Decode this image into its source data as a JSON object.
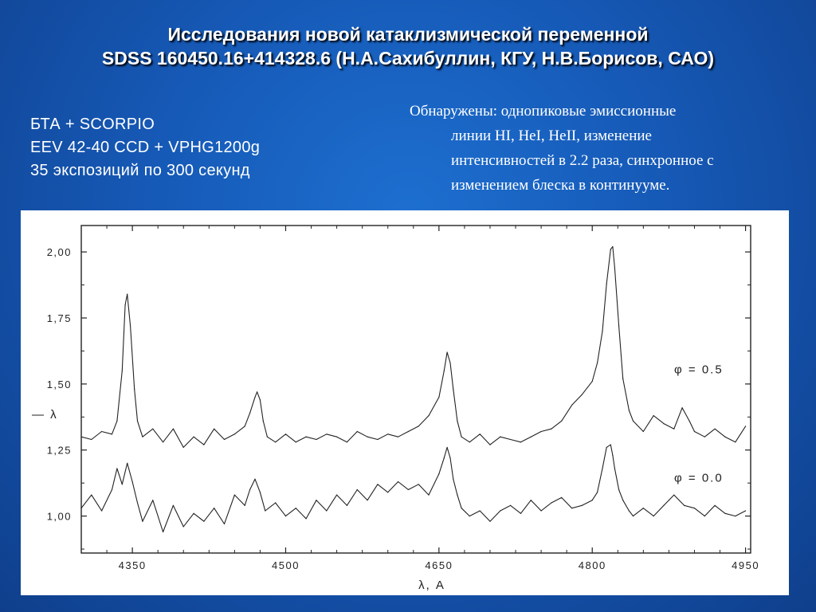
{
  "title": {
    "line1": "Исследования новой катаклизмической переменной",
    "line2": "SDSS 160450.16+414328.6 (Н.А.Сахибуллин, КГУ, Н.В.Борисов, САО)"
  },
  "instrument": {
    "line1": "БТА + SCORPIO",
    "line2": "EEV 42-40 CCD + VPHG1200g",
    "line3": "35 экспозиций по 300 секунд"
  },
  "findings": {
    "line1": "Обнаружены: однопиковые эмиссионные",
    "line2": "линии  HI, HeI, HeII, изменение",
    "line3": "интенсивностей в 2.2 раза, синхронное с",
    "line4": "изменением блеска в континууме."
  },
  "colors": {
    "background": "#1659b6",
    "text": "#ffffff",
    "plot_line": "#222222"
  },
  "chart_data": {
    "type": "line",
    "xlabel": "λ, A",
    "ylabel": "—  λ",
    "xlim": [
      4300,
      4955
    ],
    "ylim": [
      0.86,
      2.1
    ],
    "x_ticks": [
      4350,
      4500,
      4650,
      4800,
      4950
    ],
    "x_tick_labels": [
      "4350",
      "4500",
      "4650",
      "4800",
      "4950"
    ],
    "y_ticks": [
      1.0,
      1.25,
      1.5,
      1.75,
      2.0
    ],
    "y_tick_labels": [
      "1,00",
      "1,25",
      "1,50",
      "1,75",
      "2,00"
    ],
    "grid": false,
    "series": [
      {
        "name": "φ  =  0.5",
        "x": [
          4300,
          4310,
          4320,
          4330,
          4335,
          4340,
          4343,
          4345,
          4348,
          4352,
          4355,
          4360,
          4370,
          4380,
          4390,
          4400,
          4410,
          4420,
          4430,
          4440,
          4450,
          4460,
          4465,
          4470,
          4472,
          4475,
          4478,
          4482,
          4490,
          4500,
          4510,
          4520,
          4530,
          4540,
          4550,
          4560,
          4570,
          4580,
          4590,
          4600,
          4610,
          4620,
          4630,
          4640,
          4650,
          4655,
          4658,
          4661,
          4664,
          4668,
          4672,
          4680,
          4690,
          4700,
          4710,
          4720,
          4730,
          4740,
          4750,
          4760,
          4770,
          4780,
          4790,
          4800,
          4805,
          4810,
          4814,
          4818,
          4820,
          4822,
          4826,
          4830,
          4836,
          4840,
          4850,
          4860,
          4870,
          4880,
          4888,
          4895,
          4900,
          4910,
          4920,
          4930,
          4940,
          4950
        ],
        "values": [
          1.3,
          1.29,
          1.32,
          1.31,
          1.36,
          1.55,
          1.8,
          1.84,
          1.72,
          1.48,
          1.36,
          1.3,
          1.33,
          1.28,
          1.33,
          1.26,
          1.3,
          1.27,
          1.33,
          1.29,
          1.31,
          1.34,
          1.39,
          1.45,
          1.47,
          1.44,
          1.36,
          1.3,
          1.28,
          1.31,
          1.28,
          1.3,
          1.29,
          1.31,
          1.3,
          1.28,
          1.32,
          1.3,
          1.29,
          1.31,
          1.3,
          1.32,
          1.34,
          1.38,
          1.45,
          1.55,
          1.62,
          1.58,
          1.48,
          1.36,
          1.3,
          1.28,
          1.31,
          1.27,
          1.3,
          1.29,
          1.28,
          1.3,
          1.32,
          1.33,
          1.36,
          1.42,
          1.46,
          1.51,
          1.58,
          1.7,
          1.88,
          2.01,
          2.02,
          1.94,
          1.72,
          1.52,
          1.4,
          1.36,
          1.32,
          1.38,
          1.35,
          1.33,
          1.41,
          1.36,
          1.32,
          1.3,
          1.33,
          1.3,
          1.28,
          1.34
        ]
      },
      {
        "name": "φ  =  0.0",
        "x": [
          4300,
          4310,
          4320,
          4330,
          4335,
          4340,
          4345,
          4350,
          4355,
          4360,
          4370,
          4380,
          4390,
          4400,
          4410,
          4420,
          4430,
          4440,
          4450,
          4460,
          4465,
          4470,
          4475,
          4480,
          4490,
          4500,
          4510,
          4520,
          4530,
          4540,
          4550,
          4560,
          4570,
          4580,
          4590,
          4600,
          4610,
          4620,
          4630,
          4640,
          4650,
          4655,
          4658,
          4661,
          4664,
          4668,
          4672,
          4680,
          4690,
          4700,
          4710,
          4720,
          4730,
          4740,
          4750,
          4760,
          4770,
          4780,
          4790,
          4800,
          4805,
          4810,
          4814,
          4818,
          4820,
          4822,
          4826,
          4830,
          4836,
          4840,
          4850,
          4860,
          4870,
          4875,
          4880,
          4890,
          4900,
          4910,
          4920,
          4930,
          4940,
          4950
        ],
        "values": [
          1.03,
          1.08,
          1.02,
          1.1,
          1.18,
          1.12,
          1.2,
          1.13,
          1.05,
          0.98,
          1.06,
          0.94,
          1.04,
          0.96,
          1.01,
          0.98,
          1.03,
          0.97,
          1.08,
          1.04,
          1.1,
          1.14,
          1.09,
          1.02,
          1.05,
          1.0,
          1.03,
          0.99,
          1.06,
          1.02,
          1.08,
          1.04,
          1.1,
          1.06,
          1.12,
          1.09,
          1.13,
          1.1,
          1.12,
          1.08,
          1.16,
          1.22,
          1.26,
          1.22,
          1.14,
          1.08,
          1.03,
          1.0,
          1.02,
          0.98,
          1.02,
          1.04,
          1.01,
          1.06,
          1.02,
          1.05,
          1.07,
          1.03,
          1.04,
          1.06,
          1.09,
          1.18,
          1.26,
          1.27,
          1.23,
          1.18,
          1.1,
          1.06,
          1.02,
          1.0,
          1.03,
          1.0,
          1.04,
          1.06,
          1.08,
          1.04,
          1.03,
          1.0,
          1.04,
          1.01,
          1.0,
          1.02
        ]
      }
    ]
  }
}
